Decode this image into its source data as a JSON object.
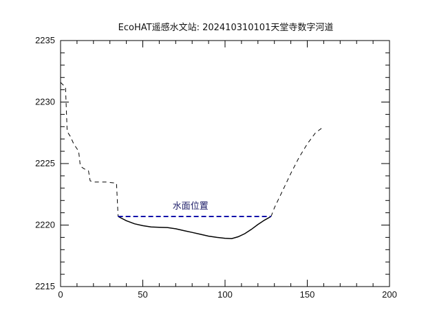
{
  "chart_data": {
    "type": "line",
    "title": "EcoHAT遥感水文站: 202410310101天堂寺数字河道",
    "xlim": [
      0,
      200
    ],
    "ylim": [
      2215,
      2235
    ],
    "x_ticks": [
      0,
      50,
      100,
      150,
      200
    ],
    "y_ticks": [
      2215,
      2220,
      2225,
      2230,
      2235
    ],
    "grid": false,
    "series": [
      {
        "style": "dashed",
        "color": "#000000",
        "points": [
          [
            0,
            2231.6
          ],
          [
            3,
            2231.2
          ],
          [
            4,
            2227.6
          ],
          [
            6,
            2227.2
          ],
          [
            8,
            2226.6
          ],
          [
            10,
            2226.2
          ],
          [
            11,
            2226.0
          ],
          [
            12,
            2224.8
          ],
          [
            14,
            2224.6
          ],
          [
            17,
            2224.4
          ],
          [
            18,
            2223.6
          ],
          [
            20,
            2223.5
          ],
          [
            28,
            2223.5
          ],
          [
            34,
            2223.4
          ],
          [
            35,
            2220.7
          ]
        ]
      },
      {
        "style": "solid",
        "color": "#000000",
        "points": [
          [
            35,
            2220.7
          ],
          [
            40,
            2220.35
          ],
          [
            45,
            2220.1
          ],
          [
            50,
            2219.95
          ],
          [
            55,
            2219.85
          ],
          [
            60,
            2219.82
          ],
          [
            65,
            2219.8
          ],
          [
            70,
            2219.7
          ],
          [
            75,
            2219.55
          ],
          [
            80,
            2219.4
          ],
          [
            85,
            2219.25
          ],
          [
            90,
            2219.1
          ],
          [
            95,
            2219.0
          ],
          [
            100,
            2218.92
          ],
          [
            104,
            2218.9
          ],
          [
            108,
            2219.05
          ],
          [
            112,
            2219.3
          ],
          [
            116,
            2219.65
          ],
          [
            120,
            2220.05
          ],
          [
            124,
            2220.4
          ],
          [
            128,
            2220.7
          ]
        ]
      },
      {
        "style": "dashed",
        "color": "#000000",
        "points": [
          [
            128,
            2220.7
          ],
          [
            130,
            2221.4
          ],
          [
            135,
            2222.8
          ],
          [
            140,
            2224.2
          ],
          [
            145,
            2225.5
          ],
          [
            150,
            2226.6
          ],
          [
            155,
            2227.5
          ],
          [
            160,
            2228.0
          ]
        ]
      },
      {
        "style": "dashed",
        "color": "#1010aa",
        "name": "水面位置",
        "points": [
          [
            35,
            2220.7
          ],
          [
            128,
            2220.7
          ]
        ]
      }
    ],
    "annotations": [
      {
        "text": "水面位置",
        "x": 79,
        "y": 2221.3
      }
    ]
  }
}
